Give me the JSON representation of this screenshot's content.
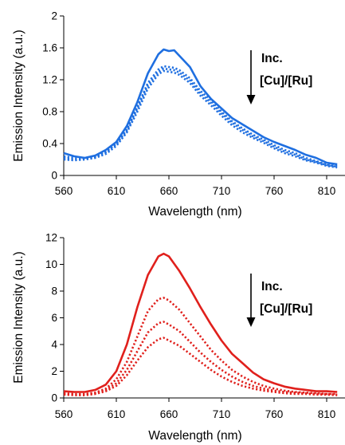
{
  "chart_data": [
    {
      "type": "line",
      "xlabel": "Wavelength (nm)",
      "ylabel": "Emission Intensity (a.u.)",
      "xlim": [
        560,
        820
      ],
      "ylim": [
        0,
        2
      ],
      "xticks": [
        "560",
        "610",
        "660",
        "710",
        "760",
        "810"
      ],
      "yticks": [
        "0",
        "0.4",
        "0.8",
        "1.2",
        "1.6",
        "2"
      ],
      "grid": false,
      "annotation": [
        "Inc.",
        "[Cu]/[Ru]"
      ],
      "color": "#1f6fe0",
      "series": [
        {
          "style": "solid",
          "x": [
            560,
            570,
            580,
            590,
            600,
            610,
            620,
            630,
            640,
            650,
            655,
            660,
            665,
            670,
            680,
            690,
            700,
            710,
            720,
            730,
            740,
            750,
            760,
            770,
            780,
            790,
            800,
            810,
            820
          ],
          "y": [
            0.28,
            0.24,
            0.22,
            0.25,
            0.32,
            0.42,
            0.62,
            0.92,
            1.28,
            1.52,
            1.58,
            1.56,
            1.57,
            1.5,
            1.36,
            1.12,
            0.96,
            0.84,
            0.72,
            0.64,
            0.56,
            0.48,
            0.42,
            0.37,
            0.32,
            0.26,
            0.22,
            0.16,
            0.14
          ]
        },
        {
          "style": "dotted",
          "x": [
            560,
            570,
            580,
            590,
            600,
            610,
            620,
            630,
            640,
            650,
            655,
            660,
            665,
            670,
            680,
            690,
            700,
            710,
            720,
            730,
            740,
            750,
            760,
            770,
            780,
            790,
            800,
            810,
            820
          ],
          "y": [
            0.24,
            0.22,
            0.22,
            0.24,
            0.3,
            0.4,
            0.58,
            0.86,
            1.16,
            1.33,
            1.37,
            1.36,
            1.35,
            1.32,
            1.22,
            1.06,
            0.94,
            0.8,
            0.68,
            0.59,
            0.51,
            0.45,
            0.38,
            0.32,
            0.28,
            0.22,
            0.18,
            0.14,
            0.12
          ]
        },
        {
          "style": "dotted",
          "x": [
            560,
            570,
            580,
            590,
            600,
            610,
            620,
            630,
            640,
            650,
            655,
            660,
            665,
            670,
            680,
            690,
            700,
            710,
            720,
            730,
            740,
            750,
            760,
            770,
            780,
            790,
            800,
            810,
            820
          ],
          "y": [
            0.22,
            0.2,
            0.21,
            0.23,
            0.29,
            0.39,
            0.56,
            0.84,
            1.13,
            1.3,
            1.34,
            1.33,
            1.32,
            1.29,
            1.19,
            1.03,
            0.91,
            0.78,
            0.66,
            0.57,
            0.49,
            0.43,
            0.36,
            0.3,
            0.26,
            0.2,
            0.17,
            0.13,
            0.11
          ]
        },
        {
          "style": "dotted",
          "x": [
            560,
            570,
            580,
            590,
            600,
            610,
            620,
            630,
            640,
            650,
            655,
            660,
            665,
            670,
            680,
            690,
            700,
            710,
            720,
            730,
            740,
            750,
            760,
            770,
            780,
            790,
            800,
            810,
            820
          ],
          "y": [
            0.2,
            0.19,
            0.2,
            0.22,
            0.27,
            0.37,
            0.54,
            0.8,
            1.09,
            1.27,
            1.31,
            1.3,
            1.29,
            1.26,
            1.16,
            1.0,
            0.88,
            0.75,
            0.63,
            0.54,
            0.47,
            0.41,
            0.34,
            0.28,
            0.24,
            0.19,
            0.16,
            0.12,
            0.1
          ]
        }
      ]
    },
    {
      "type": "line",
      "xlabel": "Wavelength (nm)",
      "ylabel": "Emission Intensity (a.u.)",
      "xlim": [
        560,
        820
      ],
      "ylim": [
        0,
        12
      ],
      "xticks": [
        "560",
        "610",
        "660",
        "710",
        "760",
        "810"
      ],
      "yticks": [
        "0",
        "2",
        "4",
        "6",
        "8",
        "10",
        "12"
      ],
      "grid": false,
      "annotation": [
        "Inc.",
        "[Cu]/[Ru]"
      ],
      "color": "#e0201c",
      "series": [
        {
          "style": "solid",
          "x": [
            560,
            570,
            580,
            590,
            600,
            610,
            620,
            630,
            640,
            650,
            655,
            660,
            670,
            680,
            690,
            700,
            710,
            720,
            730,
            740,
            750,
            760,
            770,
            780,
            790,
            800,
            810,
            820
          ],
          "y": [
            0.5,
            0.45,
            0.45,
            0.6,
            1.0,
            2.0,
            4.0,
            6.8,
            9.2,
            10.6,
            10.8,
            10.6,
            9.5,
            8.2,
            6.8,
            5.5,
            4.3,
            3.3,
            2.6,
            1.9,
            1.4,
            1.1,
            0.85,
            0.7,
            0.6,
            0.5,
            0.5,
            0.45
          ]
        },
        {
          "style": "dotted",
          "x": [
            560,
            570,
            580,
            590,
            600,
            610,
            620,
            630,
            640,
            650,
            655,
            660,
            670,
            680,
            690,
            700,
            710,
            720,
            730,
            740,
            750,
            760,
            770,
            780,
            790,
            800,
            810,
            820
          ],
          "y": [
            0.35,
            0.3,
            0.3,
            0.4,
            0.7,
            1.4,
            2.7,
            4.6,
            6.5,
            7.4,
            7.5,
            7.3,
            6.6,
            5.6,
            4.6,
            3.6,
            2.8,
            2.1,
            1.6,
            1.2,
            0.9,
            0.7,
            0.55,
            0.45,
            0.4,
            0.35,
            0.3,
            0.3
          ]
        },
        {
          "style": "dotted",
          "x": [
            560,
            570,
            580,
            590,
            600,
            610,
            620,
            630,
            640,
            650,
            655,
            660,
            670,
            680,
            690,
            700,
            710,
            720,
            730,
            740,
            750,
            760,
            770,
            780,
            790,
            800,
            810,
            820
          ],
          "y": [
            0.3,
            0.25,
            0.25,
            0.35,
            0.6,
            1.1,
            2.1,
            3.5,
            4.9,
            5.6,
            5.7,
            5.5,
            5.0,
            4.2,
            3.4,
            2.7,
            2.1,
            1.6,
            1.2,
            0.9,
            0.7,
            0.55,
            0.45,
            0.4,
            0.35,
            0.3,
            0.3,
            0.25
          ]
        },
        {
          "style": "dotted",
          "x": [
            560,
            570,
            580,
            590,
            600,
            610,
            620,
            630,
            640,
            650,
            655,
            660,
            670,
            680,
            690,
            700,
            710,
            720,
            730,
            740,
            750,
            760,
            770,
            780,
            790,
            800,
            810,
            820
          ],
          "y": [
            0.25,
            0.2,
            0.2,
            0.3,
            0.5,
            0.9,
            1.7,
            2.8,
            3.8,
            4.4,
            4.5,
            4.3,
            3.9,
            3.3,
            2.7,
            2.1,
            1.6,
            1.2,
            0.9,
            0.7,
            0.55,
            0.45,
            0.35,
            0.3,
            0.3,
            0.25,
            0.25,
            0.2
          ]
        }
      ]
    }
  ]
}
